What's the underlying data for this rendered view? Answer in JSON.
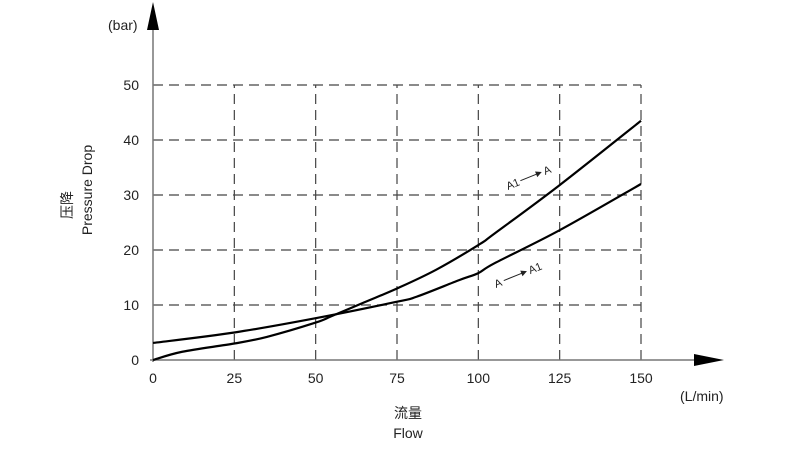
{
  "chart_data": {
    "type": "line",
    "title": "",
    "xlabel_cn": "流量",
    "xlabel": "Flow",
    "x_unit": "(L/min)",
    "ylabel_cn": "压降",
    "ylabel": "Pressure Drop",
    "y_unit": "(bar)",
    "xlim": [
      0,
      150
    ],
    "ylim": [
      0,
      50
    ],
    "xticks": [
      0,
      25,
      50,
      75,
      100,
      125,
      150
    ],
    "yticks": [
      0,
      10,
      20,
      30,
      40,
      50
    ],
    "grid": true,
    "series": [
      {
        "name": "A1 → A",
        "label_from": "A1",
        "label_to": "A",
        "x": [
          0,
          9,
          25,
          35,
          50,
          55,
          65,
          75,
          87,
          100,
          105,
          125,
          150
        ],
        "y": [
          0,
          1.5,
          3.0,
          4.2,
          6.8,
          8.0,
          10.5,
          13.0,
          16.4,
          20.9,
          23.0,
          31.8,
          43.5
        ]
      },
      {
        "name": "A → A1",
        "label_from": "A",
        "label_to": "A1",
        "x": [
          0,
          25,
          50,
          75,
          81,
          94,
          100,
          105,
          125,
          150
        ],
        "y": [
          3.1,
          5.0,
          7.6,
          10.6,
          11.5,
          14.5,
          15.8,
          17.6,
          23.6,
          32.0
        ]
      }
    ]
  }
}
